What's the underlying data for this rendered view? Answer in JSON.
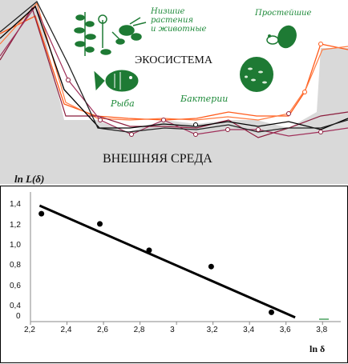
{
  "top": {
    "ecosystem_label": "ЭКОСИСТЕМА",
    "environment_label": "ВНЕШНЯЯ СРЕДА",
    "labels": {
      "lower_plants_line1": "Низшие",
      "lower_plants_line2": "растения",
      "lower_plants_line3": "и животные",
      "protozoa": "Простейшие",
      "fish": "Рыба",
      "bacteria": "Бактерии"
    },
    "icons": [
      "plant-icon",
      "animal-icon",
      "protozoa-icon",
      "fish-icon",
      "bacteria-icon"
    ],
    "colors": {
      "background_gray": "#d9d9d9",
      "orange": "#ff5a1a",
      "dark_red": "#8b1c3c",
      "black": "#000000",
      "green": "#1e8a3a"
    }
  },
  "chart_data": {
    "type": "scatter",
    "ylabel": "ln L(δ)",
    "xlabel": "ln δ",
    "x_ticks": [
      "2,2",
      "2,4",
      "2,6",
      "2,8",
      "3",
      "3,2",
      "3,4",
      "3,6",
      "3,8"
    ],
    "y_ticks": [
      "0",
      "0,4",
      "0,6",
      "0,8",
      "1,0",
      "1,2",
      "1,4"
    ],
    "points": [
      {
        "x": 2.26,
        "y": 1.32
      },
      {
        "x": 2.58,
        "y": 1.22
      },
      {
        "x": 2.85,
        "y": 0.96
      },
      {
        "x": 3.19,
        "y": 0.8
      },
      {
        "x": 3.52,
        "y": 0.35
      }
    ],
    "fit_line": {
      "x": [
        2.25,
        3.65
      ],
      "y": [
        1.4,
        0.3
      ]
    },
    "xlim": [
      2.2,
      3.9
    ],
    "ylim": [
      0.2,
      1.5
    ],
    "grid": false
  }
}
